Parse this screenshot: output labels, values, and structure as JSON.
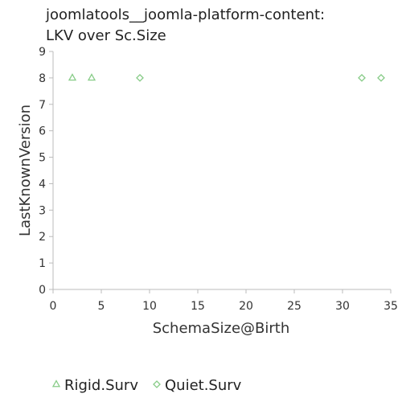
{
  "chart_data": {
    "type": "scatter",
    "title_lines": [
      "joomlatools__joomla-platform-content:",
      "LKV over Sc.Size"
    ],
    "xlabel": "SchemaSize@Birth",
    "ylabel": "LastKnownVersion",
    "xlim": [
      0,
      35
    ],
    "ylim": [
      0,
      9
    ],
    "xticks": [
      0,
      5,
      10,
      15,
      20,
      25,
      30,
      35
    ],
    "yticks": [
      0,
      1,
      2,
      3,
      4,
      5,
      6,
      7,
      8,
      9
    ],
    "grid": false,
    "legend_position": "bottom",
    "series": [
      {
        "name": "Rigid.Surv",
        "marker": "triangle",
        "color": "#88cc88",
        "points": [
          {
            "x": 2,
            "y": 8
          },
          {
            "x": 4,
            "y": 8
          }
        ]
      },
      {
        "name": "Quiet.Surv",
        "marker": "diamond",
        "color": "#88cc88",
        "points": [
          {
            "x": 9,
            "y": 8
          },
          {
            "x": 32,
            "y": 8
          },
          {
            "x": 34,
            "y": 8
          }
        ]
      }
    ]
  }
}
